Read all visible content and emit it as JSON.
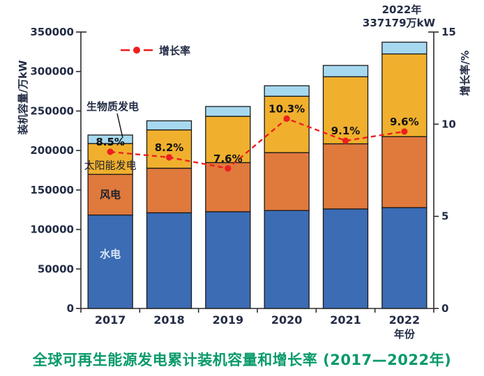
{
  "figure": {
    "caption": "全球可再生能源发电累计装机容量和增长率 (2017—2022年)",
    "caption_color": "#089A6A",
    "axis_text_color": "#232C45",
    "bar_outline_color": "#1A1A1A",
    "background_color": "#FFFFFF"
  },
  "chart_data": {
    "type": "bar",
    "subtype": "stacked-bar-with-growth-line",
    "title": "全球可再生能源发电累计装机容量和增长率 (2017—2022年)",
    "categories": [
      "2017",
      "2018",
      "2019",
      "2020",
      "2021",
      "2022"
    ],
    "xlabel": "年份",
    "ylabel": "装机容量/万kW",
    "ylabel_right": "增长率/%",
    "ylim": [
      0,
      350000
    ],
    "y_ticks": [
      0,
      50000,
      100000,
      150000,
      200000,
      250000,
      300000,
      350000
    ],
    "ylim_right": [
      0,
      15
    ],
    "y_ticks_right": [
      0,
      5,
      10,
      15
    ],
    "grid": false,
    "legend_position": "top-left-inside",
    "series": [
      {
        "name": "水电",
        "color": "#3B6CB4",
        "on_bar_label_color": "#D9E6F5",
        "values": [
          118300,
          121200,
          122500,
          124000,
          126000,
          127679
        ]
      },
      {
        "name": "风电",
        "color": "#E0793C",
        "on_bar_label_color": "#1E2230",
        "values": [
          51500,
          56400,
          62200,
          73300,
          82500,
          89900
        ]
      },
      {
        "name": "太阳能发电",
        "color": "#F0B02D",
        "on_bar_label_color": "#1E2230",
        "values": [
          39000,
          48500,
          58600,
          71400,
          84900,
          104700
        ]
      },
      {
        "name": "生物质发电",
        "color": "#A6D9F0",
        "on_bar_label_color": "#1E2230",
        "values": [
          10800,
          11500,
          12400,
          13300,
          14300,
          14900
        ]
      }
    ],
    "bar_totals": [
      219600,
      237600,
      255700,
      282000,
      307700,
      337179
    ],
    "line_series": {
      "name": "增长率",
      "color": "#ED1F1F",
      "style": "dashed-with-dots",
      "values": [
        8.5,
        8.2,
        7.6,
        10.3,
        9.1,
        9.6
      ],
      "point_labels": [
        "8.5%",
        "8.2%",
        "7.6%",
        "10.3%",
        "9.1%",
        "9.6%"
      ]
    },
    "legend": {
      "growth_line_label": "增长率"
    },
    "annotations": {
      "biomass_callout": "生物质发电",
      "peak_year": "2022年",
      "peak_value": "337179万kW"
    }
  }
}
